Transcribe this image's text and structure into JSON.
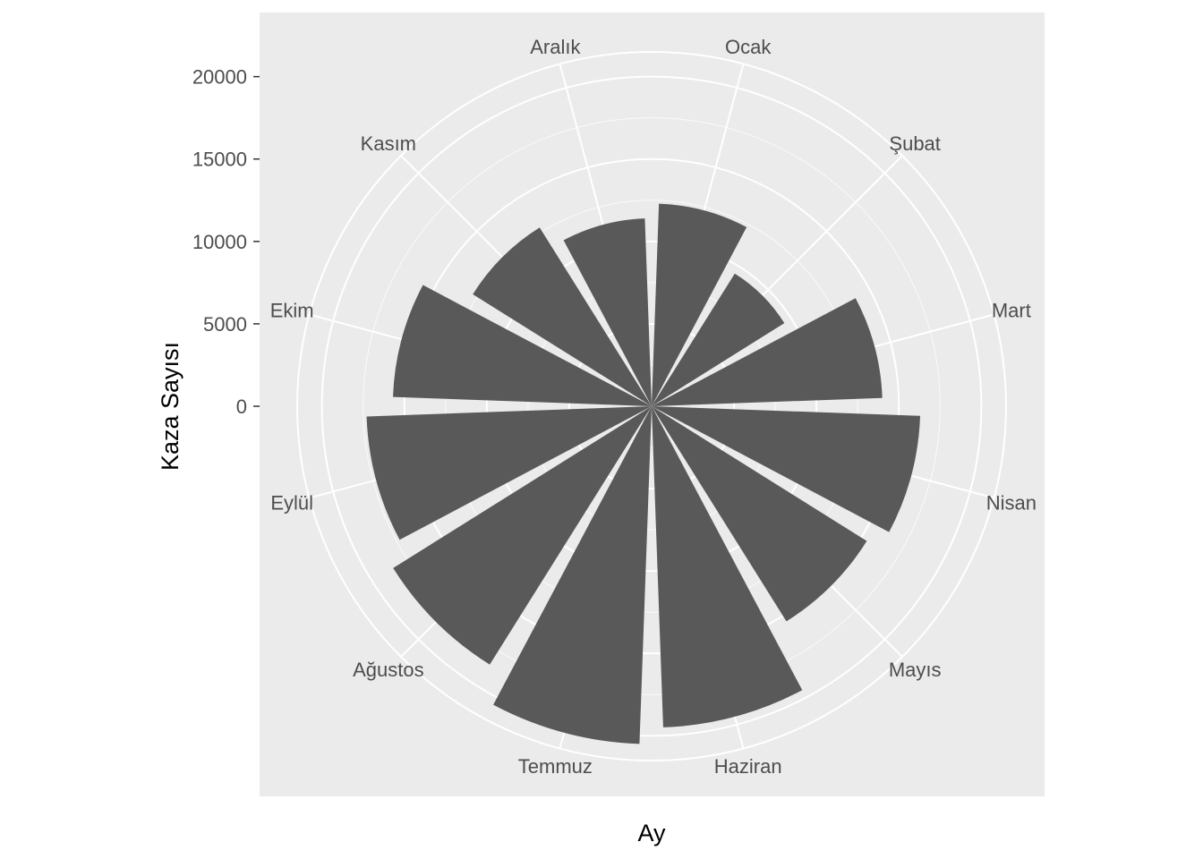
{
  "chart_data": {
    "type": "bar",
    "coord": "polar",
    "xlabel": "Ay",
    "ylabel": "Kaza Sayısı",
    "categories": [
      "Ocak",
      "Şubat",
      "Mart",
      "Nisan",
      "Mayıs",
      "Haziran",
      "Temmuz",
      "Ağustos",
      "Eylül",
      "Ekim",
      "Kasım",
      "Aralık"
    ],
    "values": [
      12300,
      9500,
      14000,
      16300,
      15400,
      19500,
      20500,
      18500,
      17300,
      15700,
      12800,
      11400
    ],
    "y_ticks": [
      0,
      5000,
      10000,
      15000,
      20000
    ],
    "y_tick_labels": [
      "0",
      "5000",
      "10000",
      "15000",
      "20000"
    ],
    "ylim": [
      0,
      20000
    ],
    "grid": true,
    "colors": {
      "panel": "#ebebeb",
      "grid": "#ffffff",
      "bar": "#595959",
      "tick_text": "#4d4d4d",
      "tick_mark": "#333333",
      "title_text": "#000000"
    }
  }
}
